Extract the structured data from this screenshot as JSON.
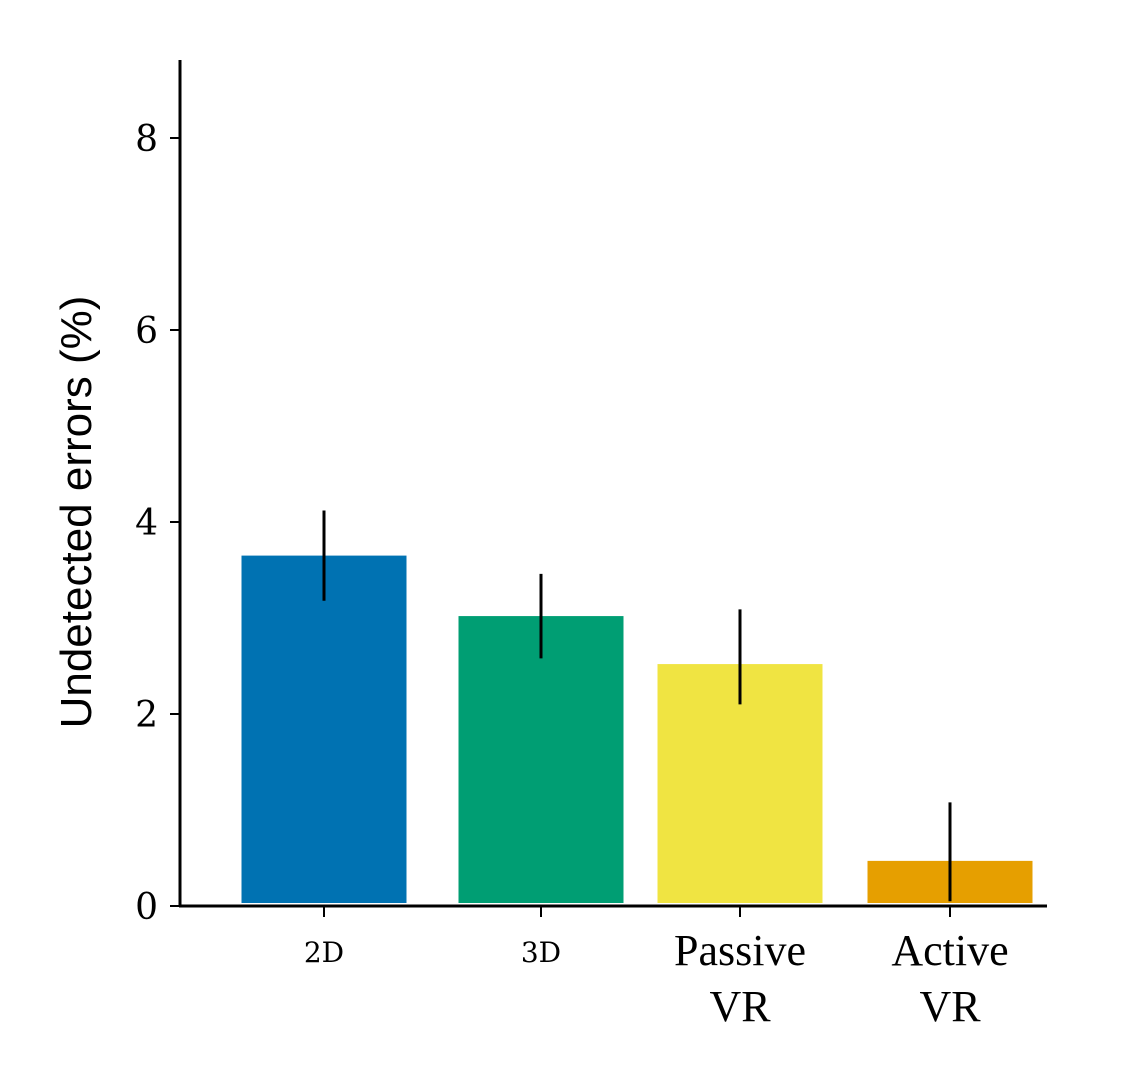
{
  "chart_data": {
    "type": "bar",
    "title": "",
    "xlabel": "",
    "ylabel": "Undetected errors (%)",
    "ylim": [
      0,
      8.8
    ],
    "yticks": [
      0,
      2,
      4,
      6,
      8
    ],
    "ytick_labels": [
      "0",
      "2",
      "4",
      "6",
      "8"
    ],
    "grid": false,
    "categories": [
      "2D",
      "3D",
      "Passive VR",
      "Active VR"
    ],
    "category_lines": [
      [
        "2D"
      ],
      [
        "3D"
      ],
      [
        "Passive",
        "VR"
      ],
      [
        "Active",
        "VR"
      ]
    ],
    "values": [
      3.65,
      3.02,
      2.52,
      0.47
    ],
    "error_low": [
      3.18,
      2.58,
      2.1,
      0.05
    ],
    "error_high": [
      4.12,
      3.46,
      3.09,
      1.08
    ],
    "colors": [
      "#0072B2",
      "#009E73",
      "#F0E442",
      "#E69F00"
    ]
  }
}
